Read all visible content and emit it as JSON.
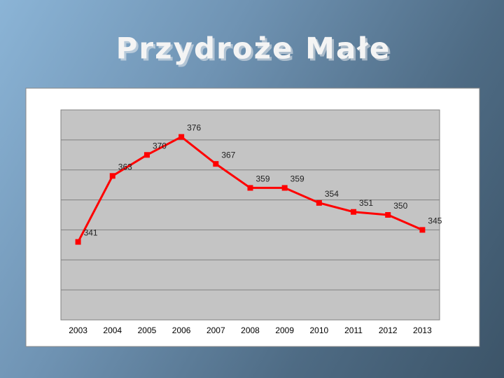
{
  "chart_data": {
    "type": "line",
    "title": "Przydroże Małe",
    "categories": [
      "2003",
      "2004",
      "2005",
      "2006",
      "2007",
      "2008",
      "2009",
      "2010",
      "2011",
      "2012",
      "2013"
    ],
    "values": [
      341,
      363,
      370,
      376,
      367,
      359,
      359,
      354,
      351,
      350,
      345
    ],
    "color": "#ff0000",
    "ylim": [
      315,
      385
    ],
    "yticks": [
      315,
      325,
      335,
      345,
      355,
      365,
      375,
      385
    ],
    "grid": true
  }
}
